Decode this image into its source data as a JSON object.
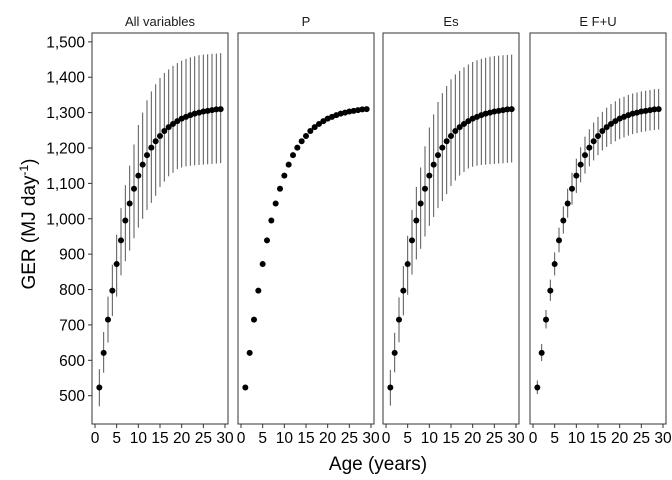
{
  "chart_data": {
    "type": "scatter",
    "style": "faceted point-range plot with vertical error bars",
    "xlabel": "Age (years)",
    "ylabel_main": "GER (MJ day",
    "ylabel_superscript": "-1",
    "ylabel_close": ")",
    "xlim": [
      0,
      30
    ],
    "ylim": [
      420,
      1525
    ],
    "x_ticks": [
      0,
      5,
      10,
      15,
      20,
      25,
      30
    ],
    "y_ticks": [
      500,
      600,
      700,
      800,
      900,
      1000,
      1100,
      1200,
      1300,
      1400,
      1500
    ],
    "y_tick_labels": [
      "500",
      "600",
      "700",
      "800",
      "900",
      "1,000",
      "1,100",
      "1,200",
      "1,300",
      "1,400",
      "1,500"
    ],
    "grid": false,
    "legend": "none",
    "x": [
      1,
      2,
      3,
      4,
      5,
      6,
      7,
      8,
      9,
      10,
      11,
      12,
      13,
      14,
      15,
      16,
      17,
      18,
      19,
      20,
      21,
      22,
      23,
      24,
      25,
      26,
      27,
      28,
      29
    ],
    "mean": [
      523,
      621,
      715,
      797,
      872,
      939,
      995,
      1043,
      1085,
      1122,
      1153,
      1180,
      1201,
      1219,
      1234,
      1248,
      1259,
      1268,
      1276,
      1283,
      1288,
      1293,
      1297,
      1300,
      1303,
      1305,
      1307,
      1309,
      1310
    ],
    "facets": [
      {
        "label": "All variables",
        "lower": [
          470,
          565,
          650,
          725,
          780,
          840,
          880,
          910,
          945,
          975,
          1000,
          1025,
          1045,
          1065,
          1090,
          1105,
          1120,
          1130,
          1140,
          1145,
          1148,
          1150,
          1151,
          1152,
          1153,
          1154,
          1155,
          1156,
          1157
        ],
        "upper": [
          575,
          680,
          780,
          870,
          955,
          1030,
          1095,
          1150,
          1210,
          1265,
          1300,
          1335,
          1360,
          1380,
          1398,
          1412,
          1422,
          1432,
          1440,
          1447,
          1452,
          1456,
          1459,
          1462,
          1464,
          1465,
          1466,
          1467,
          1468
        ]
      },
      {
        "label": "P",
        "lower": null,
        "upper": null
      },
      {
        "label": "Es",
        "lower": [
          472,
          566,
          651,
          727,
          785,
          842,
          885,
          915,
          950,
          980,
          1005,
          1030,
          1050,
          1070,
          1093,
          1108,
          1122,
          1132,
          1142,
          1147,
          1150,
          1152,
          1153,
          1154,
          1155,
          1156,
          1157,
          1158,
          1159
        ],
        "upper": [
          573,
          678,
          778,
          866,
          952,
          1025,
          1090,
          1145,
          1205,
          1258,
          1295,
          1330,
          1355,
          1375,
          1394,
          1408,
          1418,
          1428,
          1436,
          1443,
          1448,
          1452,
          1455,
          1458,
          1460,
          1461,
          1462,
          1463,
          1464
        ]
      },
      {
        "label": "E F+U",
        "lower": [
          505,
          598,
          690,
          768,
          840,
          905,
          958,
          1003,
          1040,
          1073,
          1103,
          1128,
          1148,
          1165,
          1180,
          1193,
          1203,
          1211,
          1219,
          1225,
          1230,
          1235,
          1239,
          1242,
          1245,
          1247,
          1249,
          1251,
          1252
        ],
        "upper": [
          543,
          646,
          742,
          828,
          905,
          975,
          1035,
          1085,
          1130,
          1170,
          1202,
          1232,
          1253,
          1272,
          1288,
          1302,
          1314,
          1324,
          1332,
          1340,
          1345,
          1350,
          1354,
          1357,
          1360,
          1362,
          1364,
          1366,
          1367
        ]
      }
    ]
  }
}
